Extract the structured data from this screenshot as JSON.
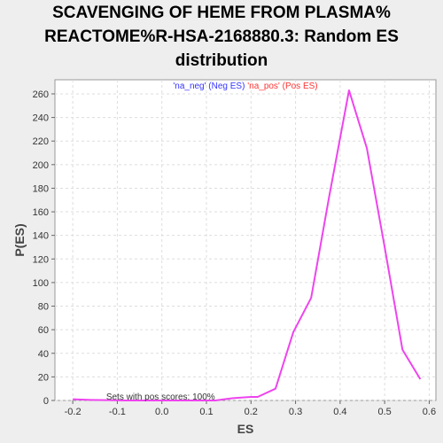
{
  "title_lines": [
    "SCAVENGING OF HEME FROM PLASMA%",
    "REACTOME%R-HSA-2168880.3: Random ES",
    "distribution"
  ],
  "chart_data": {
    "type": "line",
    "xlabel": "ES",
    "ylabel": "P(ES)",
    "xlim": [
      -0.24,
      0.615
    ],
    "ylim": [
      0,
      272
    ],
    "xticks": [
      -0.2,
      -0.1,
      0.0,
      0.1,
      0.2,
      0.3,
      0.4,
      0.5,
      0.6
    ],
    "xtick_labels": [
      "-0.2",
      "-0.1",
      "0.0",
      "0.1",
      "0.2",
      "0.3",
      "0.4",
      "0.5",
      "0.6"
    ],
    "yticks": [
      0,
      20,
      40,
      60,
      80,
      100,
      120,
      140,
      160,
      180,
      200,
      220,
      240,
      260
    ],
    "grid": true,
    "legend": {
      "placement": "top-center",
      "neg_label": "'na_neg' (Neg ES)",
      "pos_label": "'na_pos' (Pos ES)",
      "neg_color": "#3333ff",
      "pos_color": "#ff3333"
    },
    "annotation": "Sets with pos scores: 100%",
    "series": [
      {
        "color": "#ee44ee",
        "x": [
          -0.2,
          -0.16,
          -0.12,
          -0.08,
          -0.04,
          0.0,
          0.04,
          0.08,
          0.12,
          0.16,
          0.2,
          0.215,
          0.255,
          0.295,
          0.335,
          0.375,
          0.42,
          0.46,
          0.5,
          0.54,
          0.58
        ],
        "y": [
          1,
          0.5,
          0.3,
          0,
          0,
          0,
          0,
          0,
          0,
          2,
          3,
          3,
          10,
          58,
          87,
          172,
          263,
          214,
          130,
          43,
          18
        ]
      }
    ]
  }
}
